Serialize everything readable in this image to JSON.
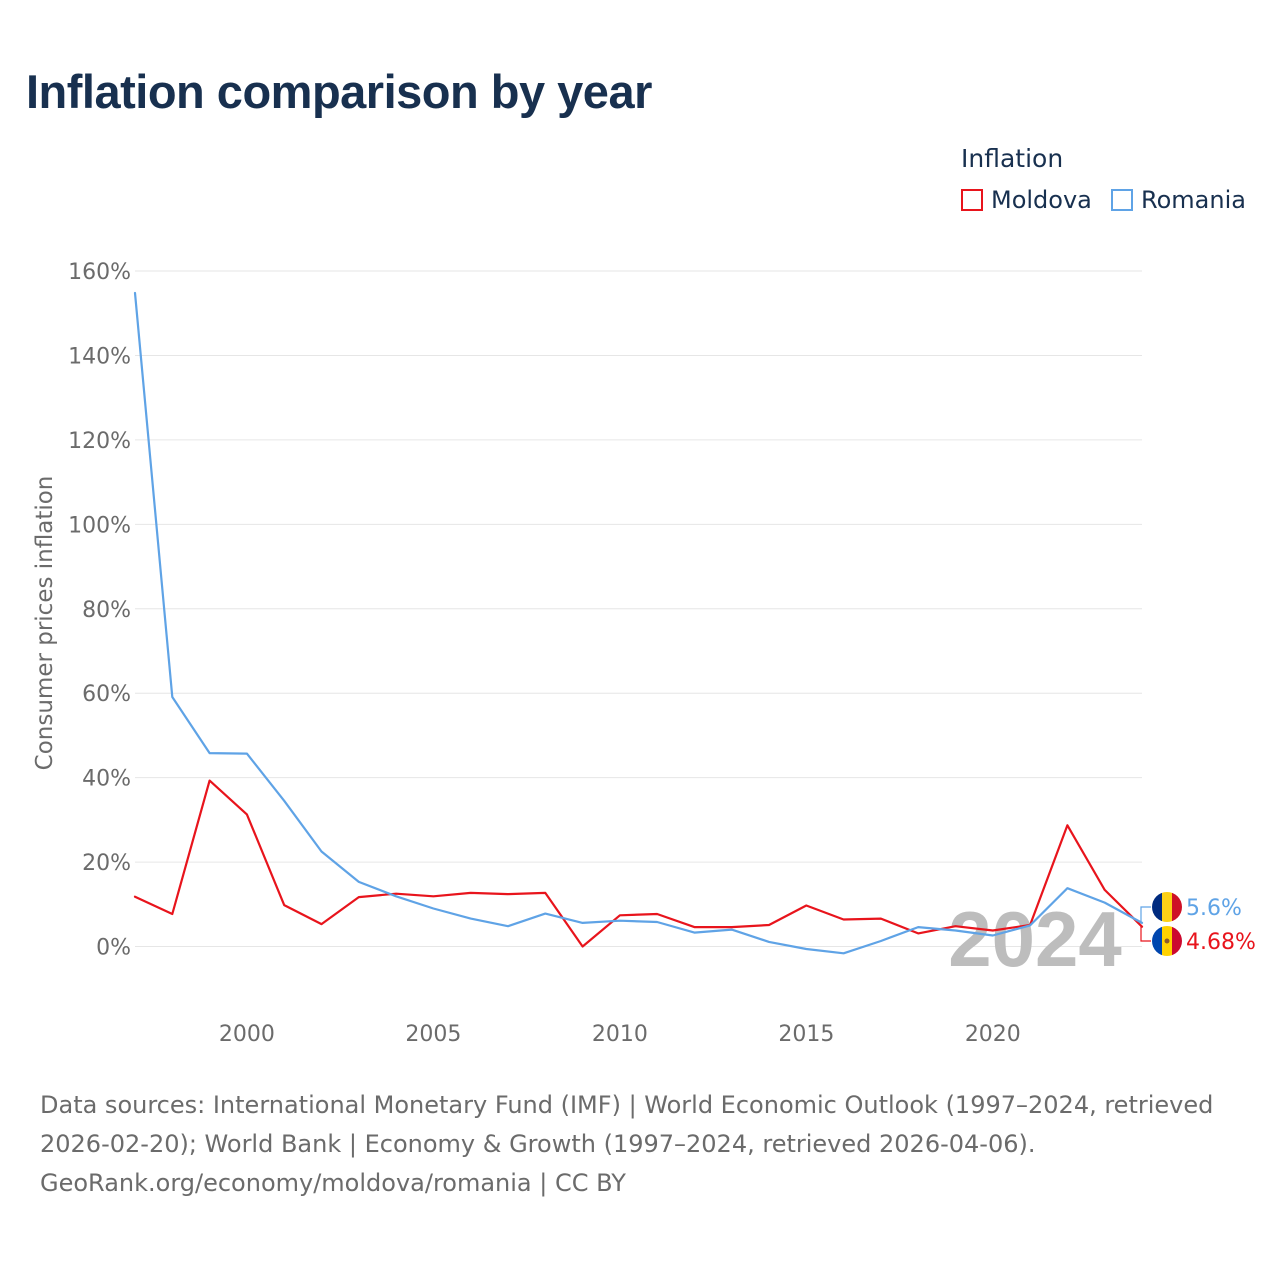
{
  "title": "Inflation comparison by year",
  "legend": {
    "title": "Inflation",
    "items": [
      {
        "label": "Moldova",
        "color": "#e8141c"
      },
      {
        "label": "Romania",
        "color": "#5fa3e6"
      }
    ]
  },
  "watermark_year": "2024",
  "footer": {
    "sources": "Data sources: International Monetary Fund (IMF) | World Economic Outlook (1997–2024, retrieved 2026-02-20); World Bank | Economy & Growth (1997–2024, retrieved 2026-04-06).",
    "credit": "GeoRank.org/economy/moldova/romania | CC BY"
  },
  "chart_data": {
    "type": "line",
    "title": "Inflation comparison by year",
    "xlabel": "",
    "ylabel": "Consumer prices inflation",
    "xlim": [
      1997,
      2024
    ],
    "ylim": [
      -10,
      160
    ],
    "x_ticks": [
      2000,
      2005,
      2010,
      2015,
      2020
    ],
    "y_ticks": [
      0,
      20,
      40,
      60,
      80,
      100,
      120,
      140,
      160
    ],
    "y_tick_labels": [
      "0%",
      "20%",
      "40%",
      "60%",
      "80%",
      "100%",
      "120%",
      "140%",
      "160%"
    ],
    "grid": true,
    "legend_position": "top-right",
    "x": [
      1997,
      1998,
      1999,
      2000,
      2001,
      2002,
      2003,
      2004,
      2005,
      2006,
      2007,
      2008,
      2009,
      2010,
      2011,
      2012,
      2013,
      2014,
      2015,
      2016,
      2017,
      2018,
      2019,
      2020,
      2021,
      2022,
      2023,
      2024
    ],
    "series": [
      {
        "name": "Moldova",
        "color": "#e8141c",
        "values": [
          11.8,
          7.7,
          39.3,
          31.3,
          9.8,
          5.3,
          11.7,
          12.5,
          11.9,
          12.7,
          12.4,
          12.7,
          0.0,
          7.4,
          7.7,
          4.6,
          4.6,
          5.1,
          9.7,
          6.4,
          6.6,
          3.1,
          4.8,
          3.8,
          5.1,
          28.7,
          13.4,
          4.68
        ],
        "end_label": "4.68%"
      },
      {
        "name": "Romania",
        "color": "#5fa3e6",
        "values": [
          154.8,
          59.1,
          45.8,
          45.7,
          34.5,
          22.5,
          15.3,
          11.9,
          9.0,
          6.6,
          4.8,
          7.8,
          5.6,
          6.1,
          5.8,
          3.3,
          4.0,
          1.1,
          -0.6,
          -1.6,
          1.3,
          4.6,
          3.8,
          2.6,
          5.0,
          13.8,
          10.4,
          5.6
        ],
        "end_label": "5.6%"
      }
    ]
  }
}
